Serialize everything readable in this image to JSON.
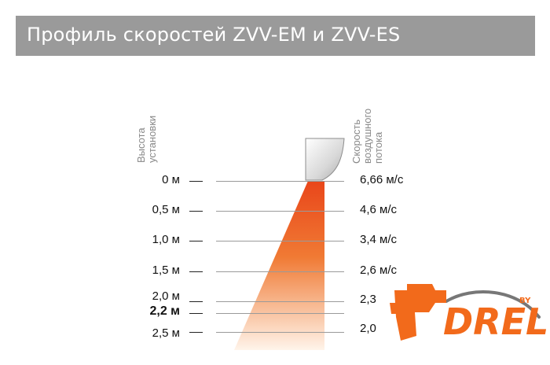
{
  "title": "Профиль скоростей ZVV-EM и ZVV-ES",
  "height_axis_label": [
    "Высота",
    "установки"
  ],
  "speed_axis_label": [
    "Скорость",
    "воздушного",
    "потока"
  ],
  "rows": [
    {
      "height": "0 м",
      "speed": "6,66 м/с",
      "bold": false
    },
    {
      "height": "0,5 м",
      "speed": "4,6 м/с",
      "bold": false
    },
    {
      "height": "1,0 м",
      "speed": "3,4 м/с",
      "bold": false
    },
    {
      "height": "1,5 м",
      "speed": "2,6 м/с",
      "bold": false
    },
    {
      "height": "2,0 м",
      "speed": "2,3",
      "bold": false
    },
    {
      "height": "2,2 м",
      "speed": "",
      "bold": true
    },
    {
      "height": "2,5 м",
      "speed": "2,0",
      "bold": false
    }
  ],
  "logo": {
    "text": "DRELI",
    "suffix": "BY"
  },
  "colors": {
    "title_bar": "#9a9a9a",
    "airflow": "#ee5a1e",
    "logo": "#f26a1b"
  }
}
